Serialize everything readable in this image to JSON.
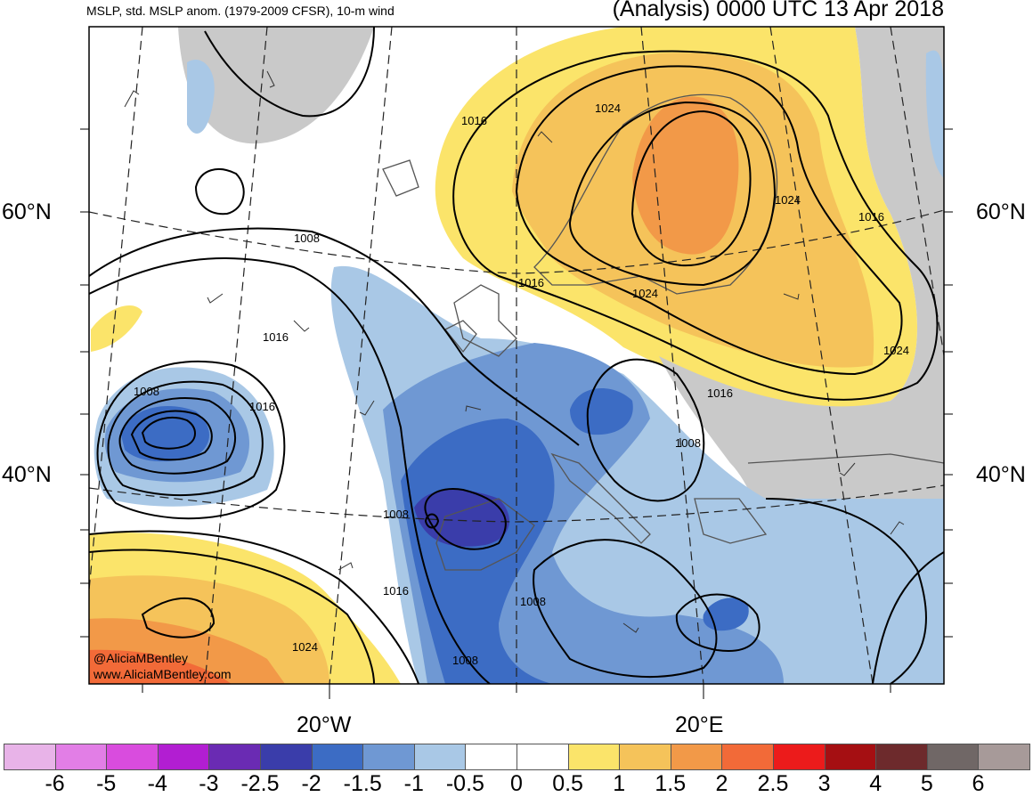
{
  "header": {
    "left_title": "MSLP, std. MSLP anom. (1979-2009 CFSR), 10-m wind",
    "right_title": "(Analysis) 0000 UTC 13 Apr 2018"
  },
  "graticule": {
    "lat_labels": [
      "60°N",
      "40°N"
    ],
    "lon_labels": [
      "20°W",
      "20°E"
    ]
  },
  "isobar_labels": [
    "1016",
    "1024",
    "1024",
    "1016",
    "1008",
    "1016",
    "1024",
    "1024",
    "1016",
    "1008",
    "1016",
    "1008",
    "1016",
    "1008",
    "1016",
    "1008",
    "1024",
    "1008"
  ],
  "credits": [
    "@AliciaMBentley",
    "www.AliciaMBentley.com"
  ],
  "colorbar": {
    "ticks": [
      "-6",
      "-5",
      "-4",
      "-3",
      "-2.5",
      "-2",
      "-1.5",
      "-1",
      "-0.5",
      "0",
      "0.5",
      "1",
      "1.5",
      "2",
      "2.5",
      "3",
      "4",
      "5",
      "6"
    ],
    "colors": [
      "#e8b3e8",
      "#e27ee6",
      "#d94cde",
      "#b21ed2",
      "#6a2bb3",
      "#3a3daa",
      "#3c6cc4",
      "#6f98d3",
      "#a9c8e6",
      "#ffffff",
      "#ffffff",
      "#fbe46a",
      "#f5c35a",
      "#f29948",
      "#f26a38",
      "#ec1b1b",
      "#a50f12",
      "#6d2a2c",
      "#706766",
      "#a79a99"
    ]
  }
}
